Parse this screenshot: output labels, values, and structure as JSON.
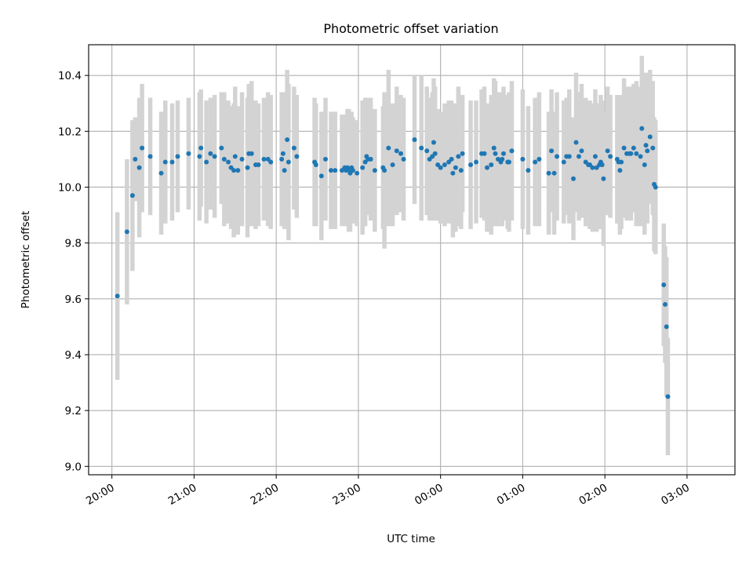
{
  "chart_data": {
    "type": "scatter",
    "title": "Photometric offset variation",
    "xlabel": "UTC time",
    "ylabel": "Photometric offset",
    "x_unit": "minutes from 20:00 UTC",
    "xlim": [
      -17,
      455
    ],
    "ylim": [
      8.97,
      10.51
    ],
    "x_ticks": [
      {
        "value": 0,
        "label": "20:00"
      },
      {
        "value": 60,
        "label": "21:00"
      },
      {
        "value": 120,
        "label": "22:00"
      },
      {
        "value": 180,
        "label": "23:00"
      },
      {
        "value": 240,
        "label": "00:00"
      },
      {
        "value": 300,
        "label": "01:00"
      },
      {
        "value": 360,
        "label": "02:00"
      },
      {
        "value": 420,
        "label": "03:00"
      }
    ],
    "y_ticks": [
      {
        "value": 9.0,
        "label": "9.0"
      },
      {
        "value": 9.2,
        "label": "9.2"
      },
      {
        "value": 9.4,
        "label": "9.4"
      },
      {
        "value": 9.6,
        "label": "9.6"
      },
      {
        "value": 9.8,
        "label": "9.8"
      },
      {
        "value": 10.0,
        "label": "10.0"
      },
      {
        "value": 10.2,
        "label": "10.2"
      },
      {
        "value": 10.4,
        "label": "10.4"
      }
    ],
    "grid": true,
    "colors": {
      "point": "#1f77b4",
      "errorbar": "#d3d3d3",
      "grid": "#b0b0b0"
    },
    "points": [
      [
        4,
        9.61,
        0.3
      ],
      [
        11,
        9.84,
        0.26
      ],
      [
        15,
        9.97,
        0.27
      ],
      [
        17,
        10.1,
        0.15
      ],
      [
        20,
        10.07,
        0.25
      ],
      [
        22,
        10.14,
        0.23
      ],
      [
        28,
        10.11,
        0.21
      ],
      [
        36,
        10.05,
        0.22
      ],
      [
        39,
        10.09,
        0.22
      ],
      [
        44,
        10.09,
        0.21
      ],
      [
        48,
        10.11,
        0.2
      ],
      [
        56,
        10.12,
        0.2
      ],
      [
        65,
        10.14,
        0.21
      ],
      [
        64,
        10.11,
        0.23
      ],
      [
        69,
        10.09,
        0.22
      ],
      [
        72,
        10.12,
        0.2
      ],
      [
        75,
        10.11,
        0.22
      ],
      [
        80,
        10.14,
        0.2
      ],
      [
        82,
        10.1,
        0.24
      ],
      [
        85,
        10.09,
        0.22
      ],
      [
        87,
        10.07,
        0.22
      ],
      [
        89,
        10.06,
        0.24
      ],
      [
        90,
        10.11,
        0.25
      ],
      [
        92,
        10.06,
        0.23
      ],
      [
        95,
        10.1,
        0.24
      ],
      [
        99,
        10.07,
        0.25
      ],
      [
        100,
        10.12,
        0.25
      ],
      [
        102,
        10.12,
        0.26
      ],
      [
        105,
        10.08,
        0.23
      ],
      [
        107,
        10.08,
        0.22
      ],
      [
        111,
        10.1,
        0.22
      ],
      [
        114,
        10.1,
        0.24
      ],
      [
        116,
        10.09,
        0.24
      ],
      [
        124,
        10.1,
        0.24
      ],
      [
        125,
        10.12,
        0.22
      ],
      [
        126,
        10.06,
        0.21
      ],
      [
        128,
        10.17,
        0.25
      ],
      [
        129,
        10.09,
        0.28
      ],
      [
        133,
        10.14,
        0.22
      ],
      [
        135,
        10.11,
        0.22
      ],
      [
        148,
        10.09,
        0.23
      ],
      [
        149,
        10.08,
        0.22
      ],
      [
        153,
        10.04,
        0.23
      ],
      [
        156,
        10.1,
        0.22
      ],
      [
        160,
        10.06,
        0.21
      ],
      [
        163,
        10.06,
        0.21
      ],
      [
        168,
        10.06,
        0.2
      ],
      [
        170,
        10.07,
        0.19
      ],
      [
        171,
        10.06,
        0.2
      ],
      [
        172,
        10.07,
        0.21
      ],
      [
        173,
        10.06,
        0.22
      ],
      [
        174,
        10.05,
        0.21
      ],
      [
        175,
        10.07,
        0.2
      ],
      [
        176,
        10.06,
        0.19
      ],
      [
        179,
        10.05,
        0.19
      ],
      [
        183,
        10.07,
        0.24
      ],
      [
        185,
        10.09,
        0.23
      ],
      [
        186,
        10.11,
        0.21
      ],
      [
        187,
        10.1,
        0.2
      ],
      [
        189,
        10.1,
        0.22
      ],
      [
        192,
        10.06,
        0.22
      ],
      [
        198,
        10.07,
        0.22
      ],
      [
        199,
        10.06,
        0.28
      ],
      [
        202,
        10.14,
        0.28
      ],
      [
        205,
        10.08,
        0.22
      ],
      [
        208,
        10.13,
        0.23
      ],
      [
        211,
        10.12,
        0.21
      ],
      [
        213,
        10.1,
        0.22
      ],
      [
        221,
        10.17,
        0.23
      ],
      [
        226,
        10.14,
        0.26
      ],
      [
        230,
        10.13,
        0.23
      ],
      [
        232,
        10.1,
        0.22
      ],
      [
        234,
        10.11,
        0.23
      ],
      [
        235,
        10.16,
        0.23
      ],
      [
        236,
        10.12,
        0.24
      ],
      [
        238,
        10.08,
        0.2
      ],
      [
        240,
        10.07,
        0.2
      ],
      [
        243,
        10.08,
        0.22
      ],
      [
        246,
        10.09,
        0.22
      ],
      [
        248,
        10.1,
        0.21
      ],
      [
        249,
        10.05,
        0.23
      ],
      [
        251,
        10.07,
        0.23
      ],
      [
        253,
        10.11,
        0.25
      ],
      [
        255,
        10.06,
        0.21
      ],
      [
        256,
        10.12,
        0.21
      ],
      [
        262,
        10.08,
        0.23
      ],
      [
        266,
        10.09,
        0.22
      ],
      [
        270,
        10.12,
        0.23
      ],
      [
        272,
        10.12,
        0.24
      ],
      [
        274,
        10.07,
        0.23
      ],
      [
        277,
        10.08,
        0.25
      ],
      [
        279,
        10.14,
        0.25
      ],
      [
        280,
        10.12,
        0.26
      ],
      [
        282,
        10.1,
        0.24
      ],
      [
        284,
        10.09,
        0.23
      ],
      [
        285,
        10.1,
        0.24
      ],
      [
        286,
        10.12,
        0.24
      ],
      [
        289,
        10.09,
        0.24
      ],
      [
        290,
        10.09,
        0.25
      ],
      [
        292,
        10.13,
        0.25
      ],
      [
        300,
        10.1,
        0.25
      ],
      [
        304,
        10.06,
        0.23
      ],
      [
        309,
        10.09,
        0.23
      ],
      [
        312,
        10.1,
        0.24
      ],
      [
        319,
        10.05,
        0.22
      ],
      [
        321,
        10.13,
        0.22
      ],
      [
        323,
        10.05,
        0.22
      ],
      [
        325,
        10.11,
        0.23
      ],
      [
        330,
        10.09,
        0.22
      ],
      [
        332,
        10.11,
        0.21
      ],
      [
        334,
        10.11,
        0.24
      ],
      [
        337,
        10.03,
        0.22
      ],
      [
        339,
        10.16,
        0.25
      ],
      [
        341,
        10.11,
        0.23
      ],
      [
        343,
        10.13,
        0.24
      ],
      [
        346,
        10.09,
        0.23
      ],
      [
        348,
        10.08,
        0.22
      ],
      [
        349,
        10.08,
        0.23
      ],
      [
        351,
        10.07,
        0.23
      ],
      [
        353,
        10.11,
        0.24
      ],
      [
        354,
        10.07,
        0.23
      ],
      [
        356,
        10.08,
        0.22
      ],
      [
        357,
        10.09,
        0.24
      ],
      [
        358,
        10.08,
        0.23
      ],
      [
        359,
        10.03,
        0.24
      ],
      [
        362,
        10.13,
        0.23
      ],
      [
        364,
        10.11,
        0.22
      ],
      [
        369,
        10.1,
        0.23
      ],
      [
        370,
        10.09,
        0.22
      ],
      [
        371,
        10.06,
        0.23
      ],
      [
        372,
        10.09,
        0.24
      ],
      [
        374,
        10.14,
        0.25
      ],
      [
        376,
        10.12,
        0.24
      ],
      [
        378,
        10.12,
        0.23
      ],
      [
        379,
        10.12,
        0.24
      ],
      [
        381,
        10.14,
        0.23
      ],
      [
        383,
        10.12,
        0.26
      ],
      [
        386,
        10.11,
        0.25
      ],
      [
        387,
        10.21,
        0.26
      ],
      [
        389,
        10.08,
        0.25
      ],
      [
        390,
        10.15,
        0.26
      ],
      [
        391,
        10.13,
        0.26
      ],
      [
        393,
        10.18,
        0.24
      ],
      [
        395,
        10.14,
        0.24
      ],
      [
        396,
        10.01,
        0.24
      ],
      [
        397,
        10.0,
        0.24
      ],
      [
        403,
        9.65,
        0.22
      ],
      [
        404,
        9.58,
        0.21
      ],
      [
        405,
        9.5,
        0.25
      ],
      [
        406,
        9.25,
        0.21
      ]
    ]
  }
}
